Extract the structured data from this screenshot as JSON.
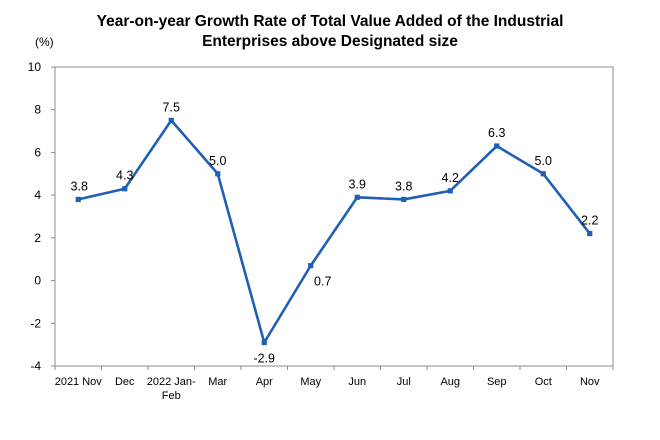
{
  "chart_data": {
    "type": "line",
    "title_line1": "Year-on-year Growth Rate of Total Value Added of the Industrial",
    "title_line2": "Enterprises above Designated size",
    "ylabel": "(%)",
    "categories": [
      [
        "2021  Nov"
      ],
      [
        "Dec"
      ],
      [
        "2022 Jan-",
        "Feb"
      ],
      [
        "Mar"
      ],
      [
        "Apr"
      ],
      [
        "May"
      ],
      [
        "Jun"
      ],
      [
        "Jul"
      ],
      [
        "Aug"
      ],
      [
        "Sep"
      ],
      [
        "Oct"
      ],
      [
        "Nov"
      ]
    ],
    "values": [
      3.8,
      4.3,
      7.5,
      5.0,
      -2.9,
      0.7,
      3.9,
      3.8,
      4.2,
      6.3,
      5.0,
      2.2
    ],
    "data_labels": [
      "3.8",
      "4.3",
      "7.5",
      "5.0",
      "-2.9",
      "0.7",
      "3.9",
      "3.8",
      "4.2",
      "6.3",
      "5.0",
      "2.2"
    ],
    "yticks": [
      "10",
      "8",
      "6",
      "4",
      "2",
      "0",
      "-2",
      "-4"
    ],
    "ylim": [
      -4,
      10
    ],
    "line_color": "#1f5fb5",
    "grid": false
  }
}
